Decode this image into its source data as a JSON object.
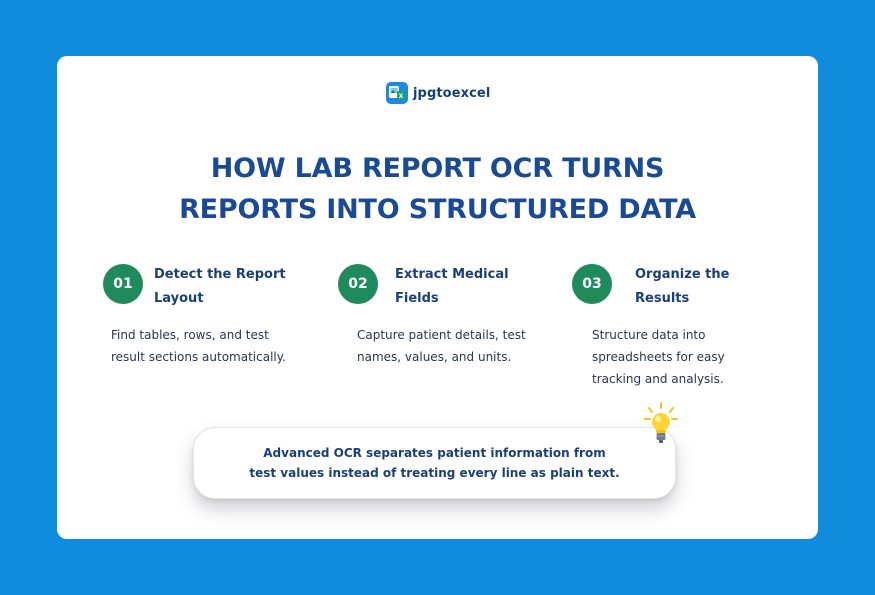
{
  "logo": {
    "text": "jpgtoexcel"
  },
  "headline": {
    "line1": "HOW LAB REPORT OCR TURNS",
    "line2": "REPORTS INTO STRUCTURED DATA"
  },
  "steps": [
    {
      "number": "01",
      "title_line1": "Detect the Report",
      "title_line2": "Layout",
      "description": "Find tables, rows, and test result sections automatically."
    },
    {
      "number": "02",
      "title_line1": "Extract Medical",
      "title_line2": "Fields",
      "description": "Capture patient details, test names, values, and units."
    },
    {
      "number": "03",
      "title_line1": "Organize the",
      "title_line2": "Results",
      "description": "Structure data into spreadsheets for easy tracking and analysis."
    }
  ],
  "callout": {
    "line1": "Advanced OCR separates patient information from",
    "line2": "test values instead of treating every line as plain text."
  },
  "colors": {
    "background": "#0f8ddc",
    "badge": "#1f8a5c",
    "heading": "#1b4a94",
    "text": "#1b3f7a"
  },
  "icons": {
    "logo": "jpgtoexcel-logo-icon",
    "tip": "lightbulb-icon"
  }
}
